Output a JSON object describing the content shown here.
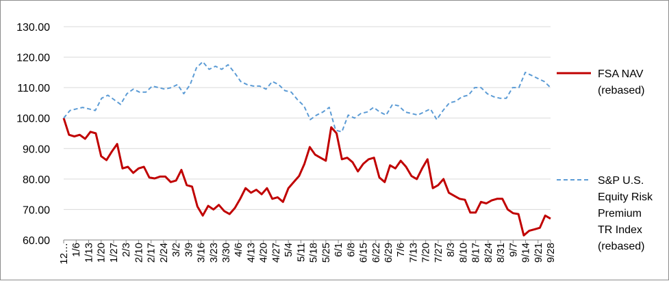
{
  "chart_data": {
    "type": "line",
    "ylim": [
      60,
      130
    ],
    "yticks": [
      "60.00",
      "70.00",
      "80.00",
      "90.00",
      "100.00",
      "110.00",
      "120.00",
      "130.00"
    ],
    "grid": {
      "horizontal": true,
      "vertical": false
    },
    "legend_position": "right",
    "x_tick_labels": [
      "12…",
      "1/6",
      "1/13",
      "1/20",
      "1/27",
      "2/3",
      "2/10",
      "2/17",
      "2/24",
      "3/2",
      "3/9",
      "3/16",
      "3/23",
      "3/30",
      "4/6",
      "4/13",
      "4/20",
      "4/27",
      "5/4",
      "5/11",
      "5/18",
      "5/25",
      "6/1",
      "6/8",
      "6/15",
      "6/22",
      "6/29",
      "7/6",
      "7/13",
      "7/20",
      "7/27",
      "8/3",
      "8/10",
      "8/17",
      "8/24",
      "8/31",
      "9/7",
      "9/14",
      "9/21",
      "9/28"
    ],
    "series": [
      {
        "name": "FSA NAV (rebased)",
        "legend_lines": [
          "FSA NAV",
          "(rebased)"
        ],
        "color": "#c00000",
        "style": "solid",
        "values": [
          100.0,
          94.5,
          94.0,
          94.5,
          93.2,
          95.5,
          95.0,
          87.5,
          86.2,
          89.0,
          91.5,
          83.5,
          84.0,
          82.0,
          83.5,
          84.0,
          80.5,
          80.2,
          80.8,
          80.8,
          79.0,
          79.5,
          83.0,
          78.0,
          77.5,
          71.0,
          68.0,
          71.2,
          70.0,
          71.5,
          69.5,
          68.5,
          70.5,
          73.5,
          77.0,
          75.5,
          76.5,
          75.0,
          77.0,
          73.5,
          74.0,
          72.5,
          77.0,
          79.0,
          81.0,
          85.0,
          90.5,
          88.0,
          87.0,
          86.0,
          97.0,
          95.0,
          86.5,
          87.0,
          85.5,
          82.5,
          85.0,
          86.5,
          87.0,
          80.5,
          79.0,
          84.5,
          83.5,
          86.0,
          84.0,
          81.0,
          80.0,
          83.5,
          86.5,
          77.0,
          78.0,
          80.0,
          75.5,
          74.5,
          73.5,
          73.2,
          69.0,
          69.0,
          72.5,
          72.0,
          73.0,
          73.5,
          73.5,
          70.0,
          68.8,
          68.5,
          61.5,
          63.0,
          63.5,
          64.0,
          68.0,
          67.0
        ]
      },
      {
        "name": "S&P U.S. Equity Risk Premium TR Index (rebased)",
        "legend_lines": [
          "S&P U.S.",
          "Equity Risk",
          "Premium",
          "TR Index",
          "(rebased)"
        ],
        "color": "#5b9bd5",
        "style": "dashed",
        "values": [
          100.0,
          102.5,
          103.0,
          103.5,
          103.0,
          102.5,
          106.5,
          107.5,
          106.0,
          104.5,
          108.0,
          109.5,
          108.5,
          108.5,
          110.5,
          110.0,
          109.5,
          110.0,
          111.0,
          108.0,
          111.0,
          116.5,
          118.5,
          116.0,
          117.0,
          116.0,
          117.5,
          115.0,
          112.0,
          111.0,
          110.5,
          110.5,
          109.5,
          112.0,
          111.0,
          109.0,
          108.5,
          106.0,
          104.0,
          99.5,
          101.0,
          102.0,
          103.5,
          96.0,
          95.5,
          101.0,
          100.0,
          101.5,
          102.0,
          103.5,
          102.0,
          101.0,
          104.5,
          104.0,
          102.0,
          101.5,
          101.0,
          102.0,
          103.0,
          99.5,
          102.5,
          105.0,
          105.5,
          107.0,
          107.5,
          110.0,
          110.0,
          108.0,
          107.0,
          106.5,
          106.5,
          110.0,
          110.0,
          115.0,
          114.0,
          113.0,
          112.0,
          110.0
        ]
      }
    ]
  }
}
